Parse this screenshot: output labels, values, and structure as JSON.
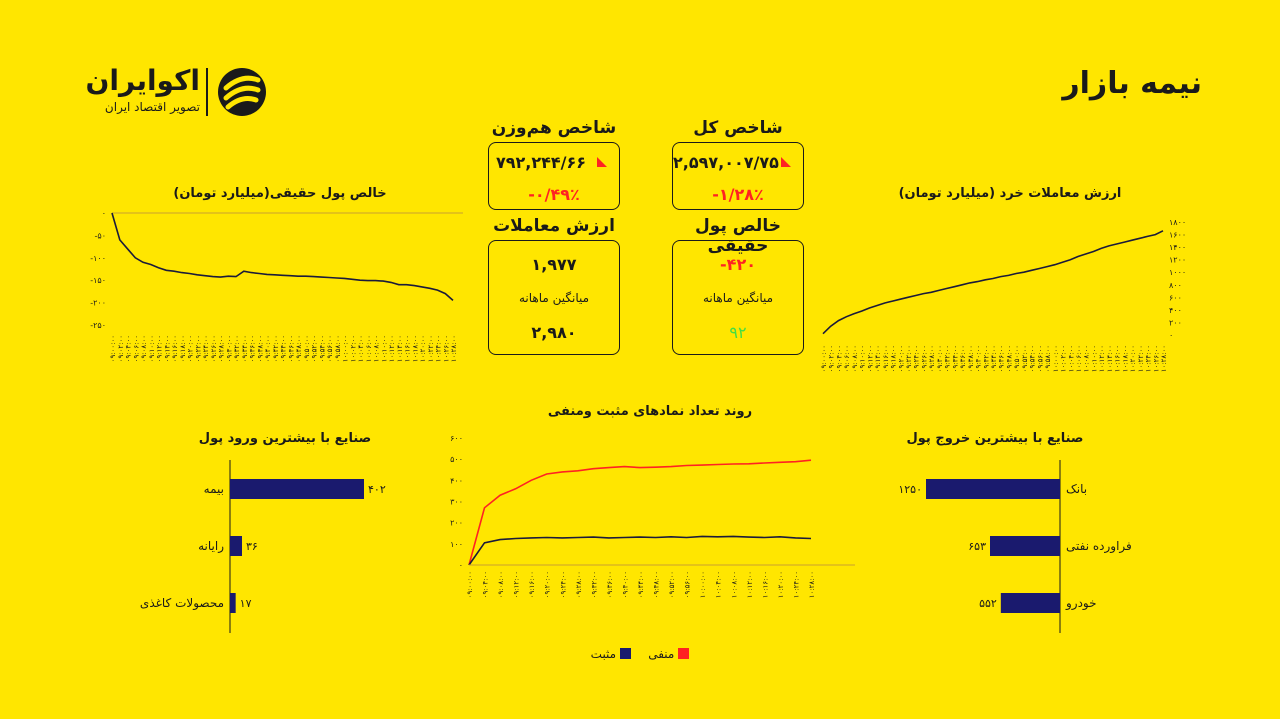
{
  "header": {
    "title": "نیمه بازار",
    "logo_name": "اکوایران",
    "logo_subtitle": "تصویر اقتصاد ایران"
  },
  "colors": {
    "background": "#FFE600",
    "positive": "#1a1a6e",
    "negative": "#ff2222",
    "line": "#1a1a3a"
  },
  "cards": {
    "total_index": {
      "label": "شاخص کل",
      "value": "۲,۵۹۷,۰۰۷/۷۵",
      "change": "-۱/۲۸٪"
    },
    "equal_index": {
      "label": "شاخص هم‌وزن",
      "value": "۷۹۲,۲۴۴/۶۶",
      "change": "-۰/۴۹٪"
    },
    "real_money": {
      "label": "خالص پول حقیقی",
      "value": "-۴۲۰",
      "avg_label": "میانگین ماهانه",
      "avg_value": "۹۲"
    },
    "trade_value": {
      "label": "ارزش معاملات",
      "value": "۱,۹۷۷",
      "avg_label": "میانگین ماهانه",
      "avg_value": "۲,۹۸۰"
    }
  },
  "chart_data": [
    {
      "id": "net-real-money",
      "type": "line",
      "title": "خالص پول حقیقی(میلیارد تومان)",
      "x": [
        "۰۹:۰۰:۰۰",
        "۰۹:۰۲:۰۰",
        "۰۹:۰۴:۰۰",
        "۰۹:۰۶:۰۰",
        "۰۹:۰۸:۰۰",
        "۰۹:۱۰:۰۰",
        "۰۹:۱۲:۰۰",
        "۰۹:۱۴:۰۰",
        "۰۹:۱۶:۰۰",
        "۰۹:۱۸:۰۰",
        "۰۹:۲۰:۰۰",
        "۰۹:۲۲:۰۰",
        "۰۹:۲۴:۰۰",
        "۰۹:۲۶:۰۰",
        "۰۹:۲۸:۰۰",
        "۰۹:۳۰:۰۰",
        "۰۹:۳۲:۰۰",
        "۰۹:۳۴:۰۰",
        "۰۹:۳۶:۰۰",
        "۰۹:۳۸:۰۰",
        "۰۹:۴۰:۰۰",
        "۰۹:۴۲:۰۰",
        "۰۹:۴۴:۰۰",
        "۰۹:۴۶:۰۰",
        "۰۹:۴۸:۰۰",
        "۰۹:۵۰:۰۰",
        "۰۹:۵۲:۰۰",
        "۰۹:۵۴:۰۰",
        "۰۹:۵۶:۰۰",
        "۰۹:۵۸:۰۰",
        "۱۰:۰۰:۰۰",
        "۱۰:۰۲:۰۰",
        "۱۰:۰۴:۰۰",
        "۱۰:۰۶:۰۰",
        "۱۰:۰۸:۰۰",
        "۱۰:۱۰:۰۰",
        "۱۰:۱۲:۰۰",
        "۱۰:۱۴:۰۰",
        "۱۰:۱۶:۰۰",
        "۱۰:۱۸:۰۰",
        "۱۰:۲۰:۰۰",
        "۱۰:۲۲:۰۰",
        "۱۰:۲۴:۰۰",
        "۱۰:۲۶:۰۰",
        "۱۰:۲۸:۰۰"
      ],
      "values": [
        0,
        -60,
        -80,
        -100,
        -110,
        -115,
        -122,
        -128,
        -130,
        -133,
        -135,
        -138,
        -140,
        -142,
        -143,
        -141,
        -142,
        -130,
        -133,
        -135,
        -137,
        -138,
        -139,
        -140,
        -141,
        -141,
        -142,
        -143,
        -144,
        -145,
        -146,
        -148,
        -150,
        -151,
        -151,
        -152,
        -155,
        -160,
        -160,
        -162,
        -165,
        -168,
        -172,
        -180,
        -195
      ],
      "yticks": [
        0,
        -50,
        -100,
        -150,
        -200,
        -250
      ],
      "ytick_labels": [
        "۰",
        "-۵۰",
        "-۱۰۰",
        "-۱۵۰",
        "-۲۰۰",
        "-۲۵۰"
      ],
      "ylim": [
        -250,
        0
      ]
    },
    {
      "id": "retail-trade-value",
      "type": "line",
      "title": "ارزش معاملات خرد (میلیارد تومان)",
      "x": [
        "۰۹:۰۰:۰۰",
        "۰۹:۰۲:۰۰",
        "۰۹:۰۴:۰۰",
        "۰۹:۰۶:۰۰",
        "۰۹:۰۸:۰۰",
        "۰۹:۱۰:۰۰",
        "۰۹:۱۲:۰۰",
        "۰۹:۱۴:۰۰",
        "۰۹:۱۶:۰۰",
        "۰۹:۱۸:۰۰",
        "۰۹:۲۰:۰۰",
        "۰۹:۲۲:۰۰",
        "۰۹:۲۴:۰۰",
        "۰۹:۲۶:۰۰",
        "۰۹:۲۸:۰۰",
        "۰۹:۳۰:۰۰",
        "۰۹:۳۲:۰۰",
        "۰۹:۳۴:۰۰",
        "۰۹:۳۶:۰۰",
        "۰۹:۳۸:۰۰",
        "۰۹:۴۰:۰۰",
        "۰۹:۴۲:۰۰",
        "۰۹:۴۴:۰۰",
        "۰۹:۴۶:۰۰",
        "۰۹:۴۸:۰۰",
        "۰۹:۵۰:۰۰",
        "۰۹:۵۲:۰۰",
        "۰۹:۵۴:۰۰",
        "۰۹:۵۶:۰۰",
        "۰۹:۵۸:۰۰",
        "۱۰:۰۰:۰۰",
        "۱۰:۰۲:۰۰",
        "۱۰:۰۴:۰۰",
        "۱۰:۰۶:۰۰",
        "۱۰:۰۸:۰۰",
        "۱۰:۱۰:۰۰",
        "۱۰:۱۲:۰۰",
        "۱۰:۱۴:۰۰",
        "۱۰:۱۶:۰۰",
        "۱۰:۱۸:۰۰",
        "۱۰:۲۰:۰۰",
        "۱۰:۲۲:۰۰",
        "۱۰:۲۴:۰۰",
        "۱۰:۲۶:۰۰",
        "۱۰:۲۸:۰۰"
      ],
      "values": [
        20,
        140,
        230,
        290,
        340,
        380,
        430,
        470,
        510,
        540,
        570,
        600,
        630,
        660,
        680,
        710,
        740,
        770,
        800,
        830,
        850,
        880,
        900,
        930,
        950,
        980,
        1000,
        1030,
        1060,
        1090,
        1120,
        1160,
        1200,
        1250,
        1290,
        1330,
        1380,
        1420,
        1450,
        1480,
        1510,
        1540,
        1570,
        1600,
        1660
      ],
      "yticks": [
        0,
        200,
        400,
        600,
        800,
        1000,
        1200,
        1400,
        1600,
        1800
      ],
      "ytick_labels": [
        "۰",
        "۲۰۰",
        "۴۰۰",
        "۶۰۰",
        "۸۰۰",
        "۱۰۰۰",
        "۱۲۰۰",
        "۱۴۰۰",
        "۱۶۰۰",
        "۱۸۰۰"
      ],
      "ylim": [
        0,
        1800
      ]
    },
    {
      "id": "positive-negative-count",
      "type": "line",
      "title": "روند تعداد نمادهای مثبت ومنفی",
      "x": [
        "۰۹:۰۰:۰۰",
        "۰۹:۰۴:۰۰",
        "۰۹:۰۸:۰۰",
        "۰۹:۱۲:۰۰",
        "۰۹:۱۶:۰۰",
        "۰۹:۲۰:۰۰",
        "۰۹:۲۴:۰۰",
        "۰۹:۲۸:۰۰",
        "۰۹:۳۲:۰۰",
        "۰۹:۳۶:۰۰",
        "۰۹:۴۰:۰۰",
        "۰۹:۴۴:۰۰",
        "۰۹:۴۸:۰۰",
        "۰۹:۵۲:۰۰",
        "۰۹:۵۶:۰۰",
        "۱۰:۰۰:۰۰",
        "۱۰:۰۴:۰۰",
        "۱۰:۰۸:۰۰",
        "۱۰:۱۲:۰۰",
        "۱۰:۱۶:۰۰",
        "۱۰:۲۰:۰۰",
        "۱۰:۲۴:۰۰",
        "۱۰:۲۸:۰۰"
      ],
      "series": [
        {
          "name": "منفی",
          "color": "#ff2222",
          "values": [
            0,
            270,
            330,
            360,
            400,
            430,
            440,
            445,
            455,
            460,
            465,
            460,
            462,
            465,
            470,
            472,
            475,
            477,
            478,
            482,
            485,
            488,
            495
          ]
        },
        {
          "name": "مثبت",
          "color": "#1a1a3a",
          "values": [
            0,
            105,
            120,
            125,
            128,
            130,
            128,
            130,
            132,
            128,
            130,
            132,
            130,
            133,
            130,
            135,
            133,
            135,
            132,
            130,
            133,
            128,
            125
          ]
        }
      ],
      "yticks": [
        0,
        100,
        200,
        300,
        400,
        500,
        600
      ],
      "ytick_labels": [
        "۰",
        "۱۰۰",
        "۲۰۰",
        "۳۰۰",
        "۴۰۰",
        "۵۰۰",
        "۶۰۰"
      ],
      "ylim": [
        0,
        600
      ],
      "legend_position": "bottom"
    },
    {
      "id": "top-inflow-industries",
      "type": "bar",
      "title": "صنایع با بیشترین ورود پول",
      "categories": [
        "بیمه",
        "رایانه",
        "محصولات کاغذی"
      ],
      "values": [
        402,
        36,
        17
      ],
      "value_labels": [
        "۴۰۲",
        "۳۶",
        "۱۷"
      ]
    },
    {
      "id": "top-outflow-industries",
      "type": "bar",
      "title": "صنایع با بیشترین خروج پول",
      "categories": [
        "بانک",
        "فراورده نفتی",
        "خودرو"
      ],
      "values": [
        1250,
        653,
        552
      ],
      "value_labels": [
        "۱۲۵۰",
        "۶۵۳",
        "۵۵۲"
      ]
    }
  ]
}
